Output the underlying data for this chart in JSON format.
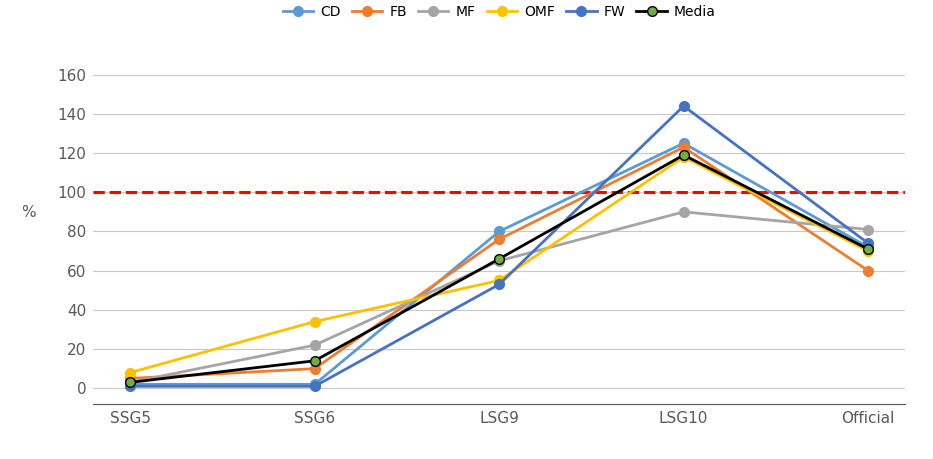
{
  "categories": [
    "SSG5",
    "SSG6",
    "LSG9",
    "LSG10",
    "Official"
  ],
  "series": {
    "CD": {
      "values": [
        2,
        2,
        80,
        125,
        72
      ],
      "color": "#5B9BD5",
      "marker": "o",
      "zorder": 3
    },
    "FB": {
      "values": [
        5,
        10,
        76,
        123,
        60
      ],
      "color": "#ED7D31",
      "marker": "o",
      "zorder": 3
    },
    "MF": {
      "values": [
        3,
        22,
        65,
        90,
        81
      ],
      "color": "#A5A5A5",
      "marker": "o",
      "zorder": 3
    },
    "OMF": {
      "values": [
        8,
        34,
        55,
        118,
        70
      ],
      "color": "#FFC000",
      "marker": "o",
      "zorder": 3
    },
    "FW": {
      "values": [
        1,
        1,
        53,
        144,
        74
      ],
      "color": "#4472C4",
      "marker": "o",
      "zorder": 3
    },
    "Media": {
      "values": [
        3,
        14,
        66,
        119,
        71
      ],
      "color": "#000000",
      "marker": "o",
      "markerfacecolor": "#70AD47",
      "zorder": 4
    }
  },
  "ylabel": "%",
  "ylim": [
    -8,
    170
  ],
  "yticks": [
    0,
    20,
    40,
    60,
    80,
    100,
    120,
    140,
    160
  ],
  "hline_y": 100,
  "hline_color": "#FF0000",
  "hline_style": "--",
  "hline_linewidth": 2.2,
  "background_color": "#FFFFFF",
  "grid_color": "#C8C8C8",
  "linewidth": 2.0,
  "markersize": 7,
  "legend_fontsize": 10,
  "tick_fontsize": 11
}
